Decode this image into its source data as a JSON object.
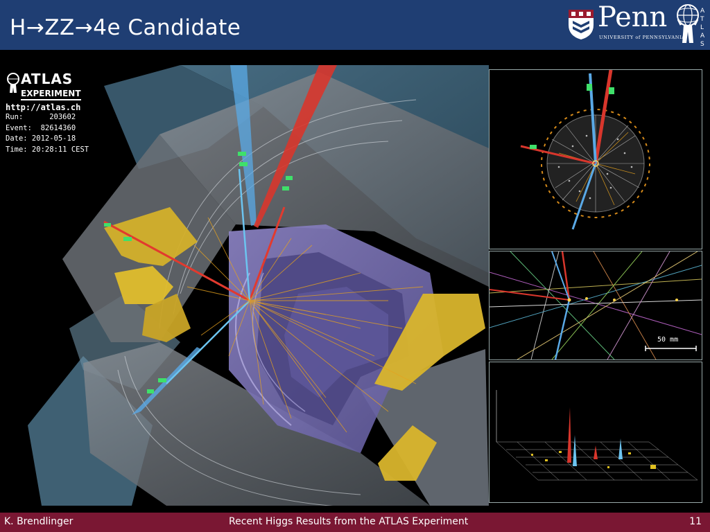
{
  "header": {
    "title": "H→ZZ→4e Candidate",
    "penn_logo_text": "Penn",
    "penn_university_text": "UNIVERSITY of PENNSYLVANIA",
    "atlas_badge_text": "ATLAS",
    "background_color": "#1f3e73"
  },
  "event_display": {
    "atlas_logo_text": "ATLAS",
    "experiment_text": "EXPERIMENT",
    "url": "http://atlas.ch",
    "run_line": "Run:      203602",
    "event_line": "Event:  82614360",
    "date_line": "Date: 2012-05-18",
    "time_line": "Time: 20:28:11 CEST",
    "scale_label": "50 mm"
  },
  "footer": {
    "author": "K. Brendlinger",
    "talk_title": "Recent Higgs Results from the ATLAS Experiment",
    "page_number": "11",
    "background_color": "#7a1733"
  }
}
